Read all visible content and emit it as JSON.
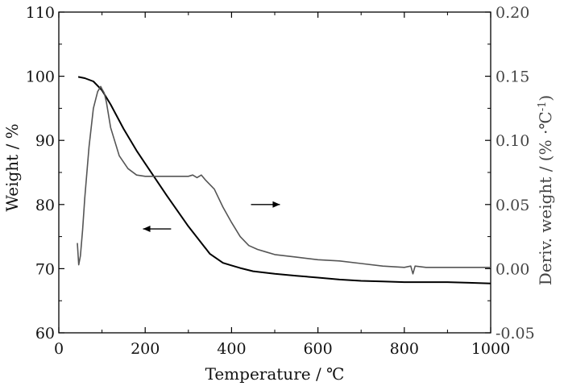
{
  "chart_data": {
    "type": "line",
    "xlabel": "Temperature / ℃",
    "ylabel_left": "Weight / %",
    "ylabel_right": "Deriv. weight  / (% ·℃",
    "ylabel_right_sup": "-1",
    "ylabel_right_close": ")",
    "xlim": [
      0,
      1000
    ],
    "ylim_left": [
      60,
      110
    ],
    "ylim_right": [
      -0.05,
      0.2
    ],
    "x_ticks": [
      0,
      200,
      400,
      600,
      800,
      1000
    ],
    "y_left_ticks": [
      60,
      70,
      80,
      90,
      100,
      110
    ],
    "y_right_ticks": [
      "-0.05",
      "0.00",
      "0.05",
      "0.10",
      "0.15",
      "0.20"
    ],
    "grid": false,
    "legend": "none",
    "series": [
      {
        "axis": "left",
        "color": "#000000",
        "x": [
          45,
          60,
          80,
          100,
          120,
          150,
          180,
          200,
          250,
          300,
          350,
          380,
          400,
          420,
          450,
          500,
          550,
          600,
          650,
          700,
          750,
          800,
          850,
          900,
          950,
          1000
        ],
        "y": [
          99.9,
          99.7,
          99.2,
          97.8,
          95.6,
          91.8,
          88.4,
          86.4,
          81.4,
          76.6,
          72.3,
          70.9,
          70.5,
          70.1,
          69.6,
          69.2,
          68.9,
          68.6,
          68.3,
          68.1,
          68.0,
          67.9,
          67.9,
          67.9,
          67.8,
          67.7
        ]
      },
      {
        "axis": "right",
        "color": "#555555",
        "x": [
          43,
          46,
          50,
          55,
          60,
          70,
          80,
          90,
          97,
          100,
          105,
          110,
          120,
          140,
          160,
          180,
          200,
          250,
          300,
          310,
          320,
          330,
          340,
          360,
          380,
          400,
          420,
          440,
          460,
          480,
          500,
          550,
          600,
          650,
          700,
          750,
          800,
          815,
          820,
          825,
          850,
          900,
          950,
          1000
        ],
        "y": [
          0.02,
          0.003,
          0.01,
          0.03,
          0.055,
          0.095,
          0.125,
          0.138,
          0.142,
          0.14,
          0.137,
          0.13,
          0.11,
          0.088,
          0.078,
          0.073,
          0.072,
          0.072,
          0.072,
          0.073,
          0.071,
          0.073,
          0.069,
          0.062,
          0.048,
          0.036,
          0.025,
          0.018,
          0.015,
          0.013,
          0.011,
          0.009,
          0.007,
          0.006,
          0.004,
          0.002,
          0.001,
          0.002,
          -0.004,
          0.002,
          0.001,
          0.001,
          0.001,
          0.001
        ]
      }
    ],
    "annotations": [
      {
        "type": "arrow",
        "direction": "left",
        "x_from": 260,
        "x_to": 195,
        "y": 76.2,
        "axis": "left"
      },
      {
        "type": "arrow",
        "direction": "right",
        "x_from": 445,
        "x_to": 512,
        "y": 0.05,
        "axis": "right"
      }
    ]
  }
}
